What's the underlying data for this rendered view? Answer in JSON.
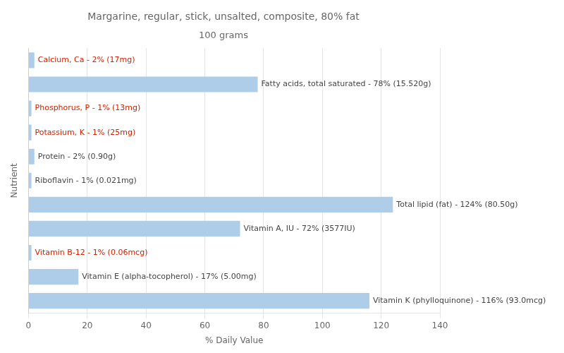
{
  "chart_data": {
    "type": "bar",
    "orientation": "horizontal",
    "title": "Margarine, regular, stick, unsalted, composite, 80% fat",
    "subtitle": "100 grams",
    "xlabel": "% Daily Value",
    "ylabel": "Nutrient",
    "categories": [
      null,
      null,
      null,
      null,
      null,
      null,
      null,
      null,
      null,
      null,
      null
    ],
    "values": [
      2,
      78,
      1,
      1,
      2,
      1,
      124,
      72,
      1,
      17,
      116
    ],
    "color": "#aecde8",
    "annotations": [
      {
        "text": "Calcium, Ca - 2% (17mg)",
        "color": "#cc2200"
      },
      {
        "text": "Fatty acids, total saturated - 78% (15.520g)",
        "color": "#444444"
      },
      {
        "text": "Phosphorus, P - 1% (13mg)",
        "color": "#cc2200"
      },
      {
        "text": "Potassium, K - 1% (25mg)",
        "color": "#cc2200"
      },
      {
        "text": "Protein - 2% (0.90g)",
        "color": "#444444"
      },
      {
        "text": "Riboflavin - 1% (0.021mg)",
        "color": "#444444"
      },
      {
        "text": "Total lipid (fat) - 124% (80.50g)",
        "color": "#444444"
      },
      {
        "text": "Vitamin A, IU - 72% (3577IU)",
        "color": "#444444"
      },
      {
        "text": "Vitamin B-12 - 1% (0.06mcg)",
        "color": "#cc2200"
      },
      {
        "text": "Vitamin E (alpha-tocopherol) - 17% (5.00mg)",
        "color": "#444444"
      },
      {
        "text": "Vitamin K (phylloquinone) - 116% (93.0mcg)",
        "color": "#444444"
      }
    ],
    "xlim": [
      0,
      140
    ],
    "xticks": [
      0,
      20,
      40,
      60,
      80,
      100,
      120,
      140
    ],
    "grid": true,
    "tick_labels": "x"
  }
}
